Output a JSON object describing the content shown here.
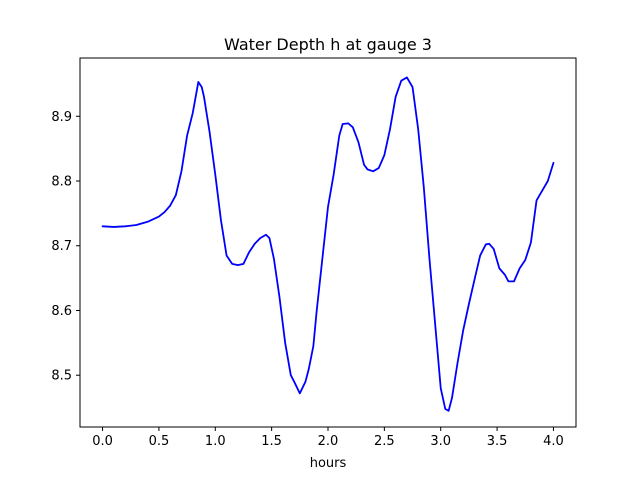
{
  "chart_data": {
    "type": "line",
    "title": "Water Depth h at gauge 3",
    "xlabel": "hours",
    "ylabel": "",
    "xlim": [
      -0.2,
      4.2
    ],
    "ylim": [
      8.42,
      8.99
    ],
    "xticks": [
      0.0,
      0.5,
      1.0,
      1.5,
      2.0,
      2.5,
      3.0,
      3.5,
      4.0
    ],
    "xtick_labels": [
      "0.0",
      "0.5",
      "1.0",
      "1.5",
      "2.0",
      "2.5",
      "3.0",
      "3.5",
      "4.0"
    ],
    "yticks": [
      8.5,
      8.6,
      8.7,
      8.8,
      8.9
    ],
    "ytick_labels": [
      "8.5",
      "8.6",
      "8.7",
      "8.8",
      "8.9"
    ],
    "grid": false,
    "series": [
      {
        "color": "#0000ff",
        "x": [
          0.0,
          0.1,
          0.2,
          0.3,
          0.4,
          0.5,
          0.55,
          0.6,
          0.65,
          0.7,
          0.75,
          0.8,
          0.85,
          0.88,
          0.9,
          0.95,
          1.0,
          1.05,
          1.1,
          1.15,
          1.2,
          1.25,
          1.3,
          1.35,
          1.4,
          1.45,
          1.48,
          1.52,
          1.57,
          1.62,
          1.67,
          1.7,
          1.75,
          1.8,
          1.83,
          1.87,
          1.9,
          1.95,
          2.0,
          2.05,
          2.1,
          2.13,
          2.18,
          2.22,
          2.27,
          2.32,
          2.35,
          2.4,
          2.45,
          2.5,
          2.55,
          2.6,
          2.65,
          2.7,
          2.75,
          2.8,
          2.85,
          2.9,
          2.95,
          3.0,
          3.04,
          3.07,
          3.1,
          3.15,
          3.2,
          3.25,
          3.3,
          3.35,
          3.4,
          3.43,
          3.47,
          3.52,
          3.57,
          3.6,
          3.65,
          3.7,
          3.75,
          3.8,
          3.85,
          3.9,
          3.95,
          4.0
        ],
        "y": [
          8.73,
          8.729,
          8.73,
          8.732,
          8.737,
          8.745,
          8.752,
          8.762,
          8.778,
          8.815,
          8.87,
          8.905,
          8.953,
          8.945,
          8.93,
          8.875,
          8.81,
          8.74,
          8.685,
          8.672,
          8.67,
          8.672,
          8.69,
          8.703,
          8.712,
          8.717,
          8.712,
          8.68,
          8.62,
          8.55,
          8.5,
          8.49,
          8.472,
          8.49,
          8.51,
          8.545,
          8.6,
          8.68,
          8.76,
          8.81,
          8.87,
          8.888,
          8.889,
          8.883,
          8.86,
          8.825,
          8.818,
          8.815,
          8.82,
          8.84,
          8.88,
          8.93,
          8.955,
          8.96,
          8.945,
          8.88,
          8.79,
          8.68,
          8.58,
          8.48,
          8.448,
          8.445,
          8.465,
          8.52,
          8.57,
          8.61,
          8.648,
          8.685,
          8.702,
          8.703,
          8.695,
          8.665,
          8.655,
          8.645,
          8.645,
          8.665,
          8.678,
          8.705,
          8.77,
          8.785,
          8.8,
          8.828
        ]
      }
    ]
  }
}
